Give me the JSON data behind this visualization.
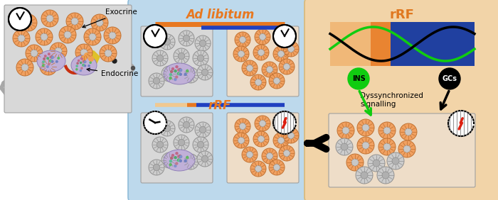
{
  "bg_color": "#ffffff",
  "mid_panel_bg": "#bdd9ec",
  "right_panel_bg": "#f2d4a8",
  "exocrine_orange": "#f0a060",
  "exocrine_border": "#c07030",
  "exocrine_inner_gray": "#c8c8c8",
  "exocrine_inner_border": "#a0a0a0",
  "exocrine_gray_outer": "#cccccc",
  "exocrine_gray_inner": "#b0b0b0",
  "endocrine_outer": "#c8b0e0",
  "orange_bar_color": "#e87820",
  "blue_bar_color": "#2040c0",
  "light_orange_bar": "#f0c890",
  "title_ad_libitum": "Ad libitum",
  "title_rrf": "rRF",
  "ins_label": "INS",
  "gcs_label": "GCs",
  "dyssync_label": "Dyssynchronized\nsignalling",
  "exocrine_label": "Exocrine",
  "endocrine_label": "Endocrine",
  "green_signal": "#10cc10",
  "red_bolt": "#dd2010",
  "mouse_gray": "#b8b8b8",
  "panel_box_bg_gray": "#d8d8d8",
  "panel_box_bg_orange": "#f0e0cc",
  "panel_box_border": "#a0a0a0",
  "left_box_bg": "#d8d8d8",
  "sig_orange_bg": "#f0b878",
  "sig_blue_bg": "#2040a0"
}
